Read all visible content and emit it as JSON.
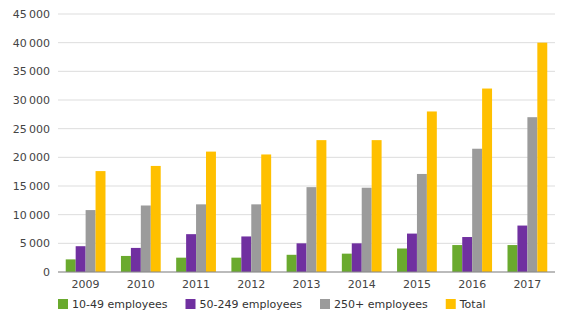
{
  "chart_data": {
    "type": "bar",
    "categories": [
      "2009",
      "2010",
      "2011",
      "2012",
      "2013",
      "2014",
      "2015",
      "2016",
      "2017"
    ],
    "series": [
      {
        "name": "10-49 employees",
        "color": "#6aaa2e",
        "values": [
          2200,
          2800,
          2500,
          2500,
          3000,
          3200,
          4100,
          4700,
          4700
        ]
      },
      {
        "name": "50-249 employees",
        "color": "#7030a0",
        "values": [
          4500,
          4200,
          6600,
          6200,
          5000,
          5000,
          6700,
          6100,
          8100
        ]
      },
      {
        "name": "250+ employees",
        "color": "#9b9b9b",
        "values": [
          10800,
          11600,
          11800,
          11800,
          14800,
          14700,
          17100,
          21500,
          27000
        ]
      },
      {
        "name": "Total",
        "color": "#ffc000",
        "values": [
          17600,
          18500,
          21000,
          20500,
          23000,
          23000,
          28000,
          32000,
          40000
        ]
      }
    ],
    "ylim": [
      0,
      45000
    ],
    "yticks": [
      0,
      {
        "value": 5000,
        "label": "5 000"
      },
      {
        "value": 10000,
        "label": "10 000"
      },
      {
        "value": 15000,
        "label": "15 000"
      },
      {
        "value": 20000,
        "label": "20 000"
      },
      {
        "value": 25000,
        "label": "25 000"
      },
      {
        "value": 30000,
        "label": "30 000"
      },
      {
        "value": 35000,
        "label": "35 000"
      },
      {
        "value": 40000,
        "label": "40 000"
      },
      {
        "value": 45000,
        "label": "45 000"
      }
    ],
    "grid": true,
    "legend": "bottom"
  }
}
